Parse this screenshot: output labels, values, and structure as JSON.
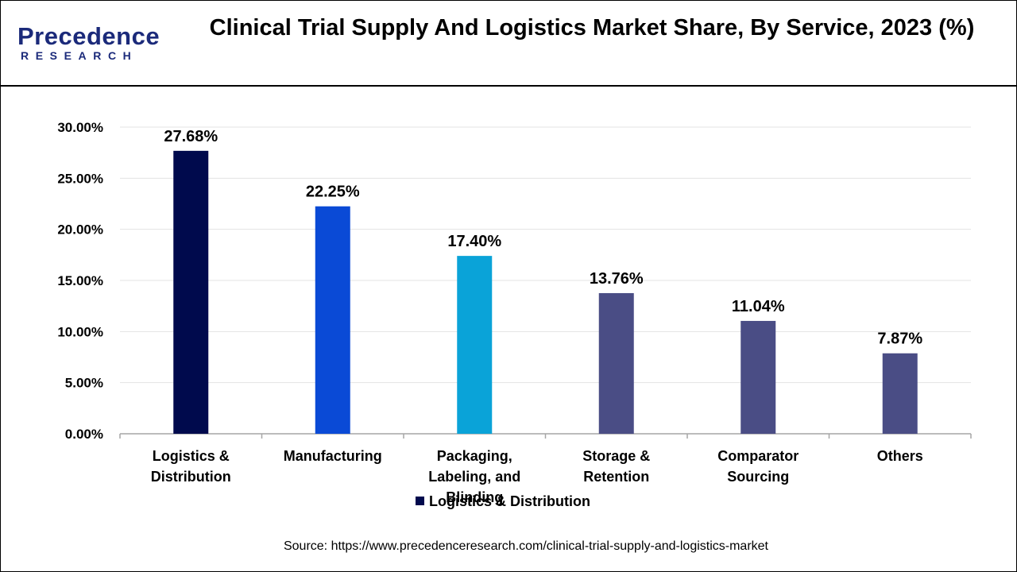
{
  "brand": {
    "logo_main": "Precedence",
    "logo_sub": "RESEARCH"
  },
  "chart_data": {
    "type": "bar",
    "title": "Clinical Trial Supply And Logistics Market  Share, By Service, 2023 (%)",
    "categories": [
      [
        "Logistics &",
        "Distribution"
      ],
      [
        "Manufacturing"
      ],
      [
        "Packaging,",
        "Labeling, and",
        "Blinding"
      ],
      [
        "Storage &",
        "Retention"
      ],
      [
        "Comparator",
        "Sourcing"
      ],
      [
        "Others"
      ]
    ],
    "values": [
      27.68,
      22.25,
      17.4,
      13.76,
      11.04,
      7.87
    ],
    "value_labels": [
      "27.68%",
      "22.25%",
      "17.40%",
      "13.76%",
      "11.04%",
      "7.87%"
    ],
    "colors": [
      "#000a4d",
      "#0a4ad6",
      "#0aa3d8",
      "#4a4d85",
      "#4a4d85",
      "#4a4d85"
    ],
    "ylim": [
      0,
      30
    ],
    "yticks": [
      0,
      5,
      10,
      15,
      20,
      25,
      30
    ],
    "ytick_labels": [
      "0.00%",
      "5.00%",
      "10.00%",
      "15.00%",
      "20.00%",
      "25.00%",
      "30.00%"
    ],
    "xlabel": "",
    "ylabel": "",
    "grid": true,
    "legend": {
      "position": "bottom",
      "entries": [
        {
          "label": "Logistics & Distribution",
          "color": "#000a4d"
        }
      ]
    }
  },
  "source": "Source: https://www.precedenceresearch.com/clinical-trial-supply-and-logistics-market"
}
